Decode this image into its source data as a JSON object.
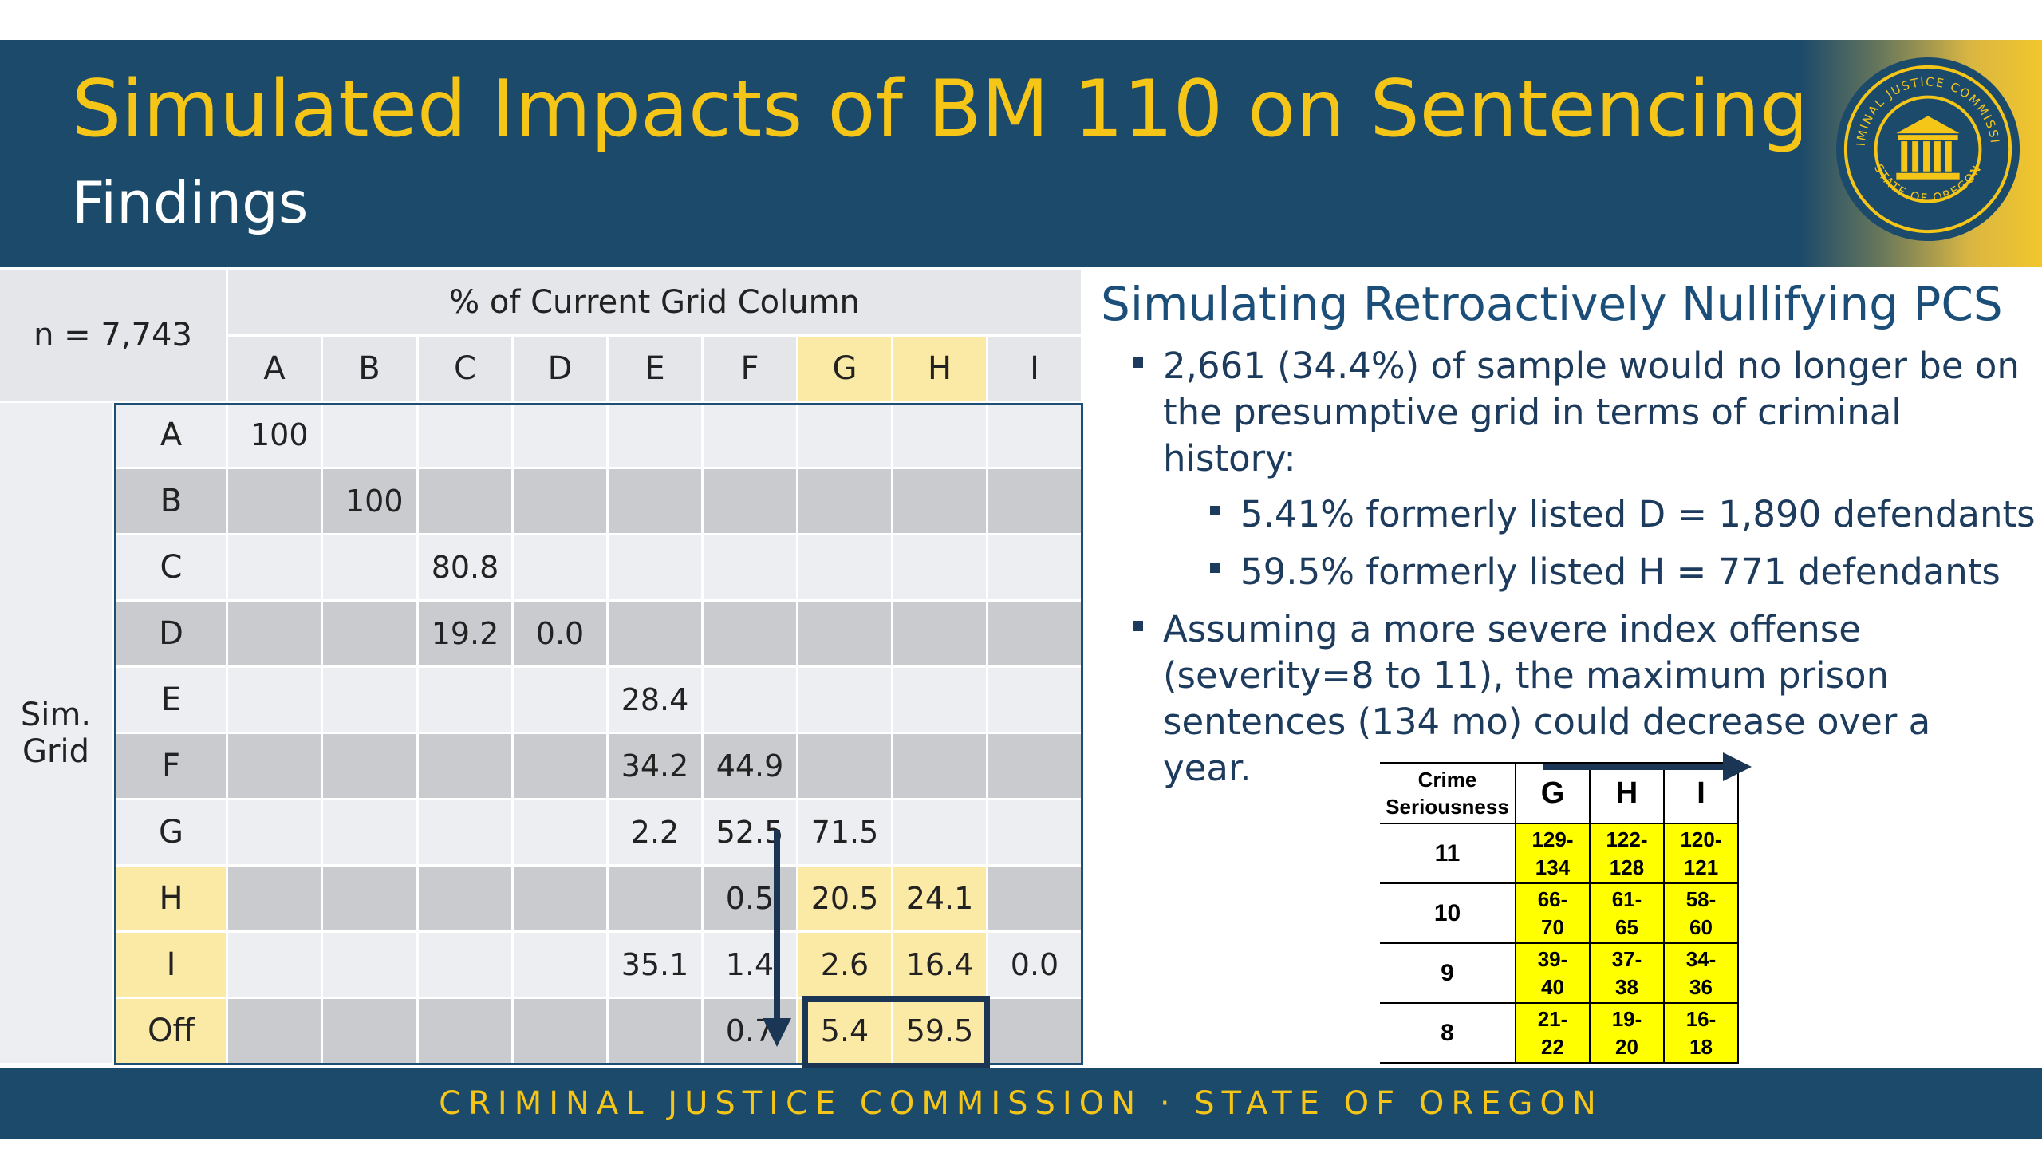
{
  "header": {
    "title": "Simulated Impacts of BM 110 on Sentencing",
    "subtitle": "Findings",
    "seal": {
      "text_top": "CRIMINAL JUSTICE COMMISSION",
      "text_bottom": "STATE OF OREGON"
    }
  },
  "grid": {
    "n_label": "n = 7,743",
    "col_header": "% of Current Grid Column",
    "side_label_1": "Sim.",
    "side_label_2": "Grid",
    "columns": [
      "A",
      "B",
      "C",
      "D",
      "E",
      "F",
      "G",
      "H",
      "I"
    ],
    "rows": [
      {
        "label": "A",
        "cells": [
          "100",
          "",
          "",
          "",
          "",
          "",
          "",
          "",
          ""
        ]
      },
      {
        "label": "B",
        "cells": [
          "",
          "100",
          "",
          "",
          "",
          "",
          "",
          "",
          ""
        ]
      },
      {
        "label": "C",
        "cells": [
          "",
          "",
          "80.8",
          "",
          "",
          "",
          "",
          "",
          ""
        ]
      },
      {
        "label": "D",
        "cells": [
          "",
          "",
          "19.2",
          "0.0",
          "",
          "",
          "",
          "",
          ""
        ]
      },
      {
        "label": "E",
        "cells": [
          "",
          "",
          "",
          "",
          "28.4",
          "",
          "",
          "",
          ""
        ]
      },
      {
        "label": "F",
        "cells": [
          "",
          "",
          "",
          "",
          "34.2",
          "44.9",
          "",
          "",
          ""
        ]
      },
      {
        "label": "G",
        "cells": [
          "",
          "",
          "",
          "",
          "2.2",
          "52.5",
          "71.5",
          "",
          ""
        ]
      },
      {
        "label": "H",
        "cells": [
          "",
          "",
          "",
          "",
          "",
          "0.5",
          "20.5",
          "24.1",
          ""
        ]
      },
      {
        "label": "I",
        "cells": [
          "",
          "",
          "",
          "",
          "35.1",
          "1.4",
          "2.6",
          "16.4",
          "0.0"
        ]
      },
      {
        "label": "Off",
        "cells": [
          "",
          "",
          "",
          "",
          "",
          "0.7",
          "5.4",
          "59.5",
          ""
        ]
      }
    ],
    "highlight_columns": [
      "G",
      "H"
    ],
    "highlight_rows": [
      "H",
      "I",
      "Off"
    ],
    "colors": {
      "light": "#eceef1",
      "dark": "#c9cbcf",
      "yellow": "#fbe9a6",
      "border": "#1d4f74"
    }
  },
  "right": {
    "heading": "Simulating Retroactively Nullifying PCS",
    "bullet1": "2,661 (34.4%) of sample would no longer be on the presumptive grid in terms of criminal history:",
    "sub1": "5.41% formerly listed D = 1,890 defendants",
    "sub2": "59.5% formerly listed H = 771 defendants",
    "bullet2": "Assuming a more severe index offense (severity=8 to 11), the maximum prison sentences (134 mo) could decrease over a year."
  },
  "crime_table": {
    "header_1": "Crime",
    "header_2": "Seriousness",
    "columns": [
      "G",
      "H",
      "I"
    ],
    "rows": [
      {
        "label": "11",
        "cells": [
          [
            "129-",
            "134"
          ],
          [
            "122-",
            "128"
          ],
          [
            "120-",
            "121"
          ]
        ]
      },
      {
        "label": "10",
        "cells": [
          [
            "66-",
            "70"
          ],
          [
            "61-",
            "65"
          ],
          [
            "58-",
            "60"
          ]
        ]
      },
      {
        "label": "9",
        "cells": [
          [
            "39-",
            "40"
          ],
          [
            "37-",
            "38"
          ],
          [
            "34-",
            "36"
          ]
        ]
      },
      {
        "label": "8",
        "cells": [
          [
            "21-",
            "22"
          ],
          [
            "19-",
            "20"
          ],
          [
            "16-",
            "18"
          ]
        ]
      }
    ]
  },
  "footer": {
    "text": "CRIMINAL JUSTICE COMMISSION · STATE OF OREGON"
  },
  "colors": {
    "navy": "#1c4a6b",
    "gold": "#f5c518"
  }
}
